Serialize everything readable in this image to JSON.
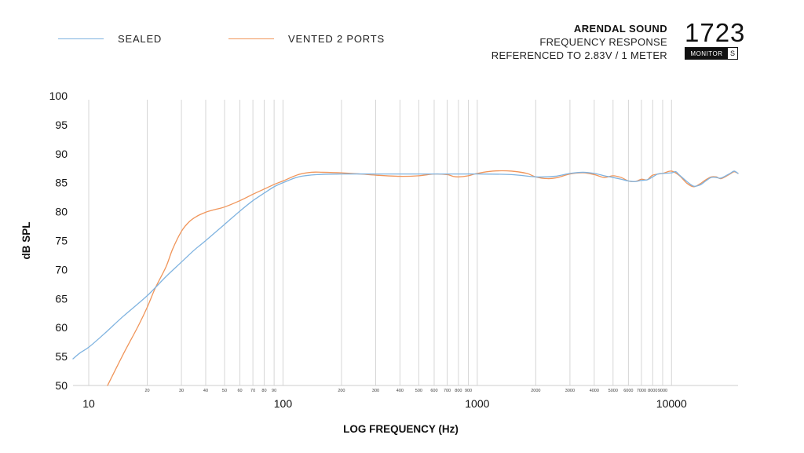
{
  "legend": [
    {
      "label": "SEALED",
      "color": "#7fb3e0"
    },
    {
      "label": "VENTED 2 PORTS",
      "color": "#f0955a"
    }
  ],
  "header": {
    "title": "ARENDAL SOUND",
    "subtitle": "FREQUENCY RESPONSE",
    "subtitle2": "REFERENCED TO 2.83V / 1 METER"
  },
  "logo": {
    "number": "1723",
    "badge_dark": "MONITOR",
    "badge_light": "S"
  },
  "chart_data": {
    "type": "line",
    "title": "",
    "xlabel": "LOG FREQUENCY (Hz)",
    "ylabel": "dB SPL",
    "x_scale": "log",
    "xlim": [
      8.3,
      22000
    ],
    "ylim": [
      50,
      100
    ],
    "grid": "vertical",
    "legend_position": "top-left",
    "y_ticks": [
      50,
      55,
      60,
      65,
      70,
      75,
      80,
      85,
      90,
      95,
      100
    ],
    "x_major_ticks": [
      {
        "value": 10,
        "label": "10"
      },
      {
        "value": 100,
        "label": "100"
      },
      {
        "value": 1000,
        "label": "1000"
      },
      {
        "value": 10000,
        "label": "10000"
      }
    ],
    "x_minor_ticks": [
      {
        "value": 20,
        "label": "20"
      },
      {
        "value": 30,
        "label": "30"
      },
      {
        "value": 40,
        "label": "40"
      },
      {
        "value": 50,
        "label": "50"
      },
      {
        "value": 60,
        "label": "60"
      },
      {
        "value": 70,
        "label": "70"
      },
      {
        "value": 80,
        "label": "80"
      },
      {
        "value": 90,
        "label": "90"
      },
      {
        "value": 200,
        "label": "200"
      },
      {
        "value": 300,
        "label": "300"
      },
      {
        "value": 400,
        "label": "400"
      },
      {
        "value": 500,
        "label": "500"
      },
      {
        "value": 600,
        "label": "600"
      },
      {
        "value": 700,
        "label": "700"
      },
      {
        "value": 800,
        "label": "800"
      },
      {
        "value": 900,
        "label": "900"
      },
      {
        "value": 2000,
        "label": "2000"
      },
      {
        "value": 3000,
        "label": "3000"
      },
      {
        "value": 4000,
        "label": "4000"
      },
      {
        "value": 5000,
        "label": "5000"
      },
      {
        "value": 6000,
        "label": "6000"
      },
      {
        "value": 7000,
        "label": "7000"
      },
      {
        "value": 8000,
        "label": "8000"
      },
      {
        "value": 9000,
        "label": "9000"
      }
    ],
    "series": [
      {
        "name": "SEALED",
        "color": "#7fb3e0",
        "points": [
          [
            8.3,
            54.6
          ],
          [
            9,
            55.6
          ],
          [
            10,
            56.6
          ],
          [
            12,
            58.9
          ],
          [
            15,
            61.9
          ],
          [
            20,
            65.5
          ],
          [
            25,
            68.8
          ],
          [
            30,
            71.3
          ],
          [
            35,
            73.4
          ],
          [
            40,
            75.0
          ],
          [
            50,
            77.8
          ],
          [
            60,
            80.1
          ],
          [
            70,
            81.9
          ],
          [
            80,
            83.2
          ],
          [
            90,
            84.3
          ],
          [
            100,
            85.0
          ],
          [
            120,
            86.0
          ],
          [
            150,
            86.4
          ],
          [
            200,
            86.5
          ],
          [
            300,
            86.5
          ],
          [
            400,
            86.5
          ],
          [
            500,
            86.5
          ],
          [
            600,
            86.5
          ],
          [
            700,
            86.5
          ],
          [
            800,
            86.5
          ],
          [
            1000,
            86.5
          ],
          [
            1500,
            86.4
          ],
          [
            2000,
            86.0
          ],
          [
            2500,
            86.1
          ],
          [
            3000,
            86.6
          ],
          [
            3500,
            86.8
          ],
          [
            4000,
            86.6
          ],
          [
            4500,
            86.2
          ],
          [
            5000,
            85.9
          ],
          [
            5500,
            85.6
          ],
          [
            6000,
            85.3
          ],
          [
            6500,
            85.2
          ],
          [
            7000,
            85.4
          ],
          [
            7500,
            85.5
          ],
          [
            8000,
            86.0
          ],
          [
            8500,
            86.5
          ],
          [
            9000,
            86.6
          ],
          [
            10000,
            86.7
          ],
          [
            10500,
            86.9
          ],
          [
            11000,
            86.3
          ],
          [
            12000,
            85.2
          ],
          [
            13000,
            84.4
          ],
          [
            14000,
            84.6
          ],
          [
            15000,
            85.3
          ],
          [
            16000,
            85.9
          ],
          [
            17000,
            85.9
          ],
          [
            18000,
            85.8
          ],
          [
            20000,
            86.6
          ],
          [
            21000,
            87.0
          ],
          [
            22000,
            86.6
          ]
        ]
      },
      {
        "name": "VENTED 2 PORTS",
        "color": "#f0955a",
        "points": [
          [
            12.5,
            50.0
          ],
          [
            15,
            55.3
          ],
          [
            18,
            60.3
          ],
          [
            20,
            63.5
          ],
          [
            22,
            66.8
          ],
          [
            25,
            70.5
          ],
          [
            27,
            73.5
          ],
          [
            30,
            76.6
          ],
          [
            33,
            78.3
          ],
          [
            36,
            79.2
          ],
          [
            40,
            79.9
          ],
          [
            45,
            80.4
          ],
          [
            50,
            80.8
          ],
          [
            60,
            81.9
          ],
          [
            70,
            83.0
          ],
          [
            80,
            83.9
          ],
          [
            90,
            84.7
          ],
          [
            100,
            85.3
          ],
          [
            120,
            86.4
          ],
          [
            140,
            86.8
          ],
          [
            160,
            86.8
          ],
          [
            200,
            86.7
          ],
          [
            250,
            86.5
          ],
          [
            300,
            86.3
          ],
          [
            400,
            86.1
          ],
          [
            500,
            86.2
          ],
          [
            600,
            86.5
          ],
          [
            700,
            86.4
          ],
          [
            750,
            86.1
          ],
          [
            800,
            86.0
          ],
          [
            900,
            86.2
          ],
          [
            1000,
            86.6
          ],
          [
            1200,
            87.0
          ],
          [
            1500,
            87.0
          ],
          [
            1800,
            86.6
          ],
          [
            2000,
            86.0
          ],
          [
            2300,
            85.7
          ],
          [
            2600,
            85.9
          ],
          [
            3000,
            86.5
          ],
          [
            3500,
            86.7
          ],
          [
            4000,
            86.4
          ],
          [
            4500,
            85.9
          ],
          [
            5000,
            86.2
          ],
          [
            5500,
            85.9
          ],
          [
            6000,
            85.3
          ],
          [
            6500,
            85.2
          ],
          [
            7000,
            85.6
          ],
          [
            7500,
            85.5
          ],
          [
            8000,
            86.3
          ],
          [
            9000,
            86.6
          ],
          [
            10000,
            87.0
          ],
          [
            11000,
            86.2
          ],
          [
            12000,
            84.9
          ],
          [
            13000,
            84.3
          ],
          [
            14000,
            84.8
          ],
          [
            15000,
            85.5
          ],
          [
            16000,
            86.0
          ],
          [
            17000,
            86.0
          ],
          [
            18000,
            85.7
          ],
          [
            20000,
            86.5
          ],
          [
            21000,
            86.9
          ],
          [
            22000,
            86.6
          ]
        ]
      }
    ]
  }
}
